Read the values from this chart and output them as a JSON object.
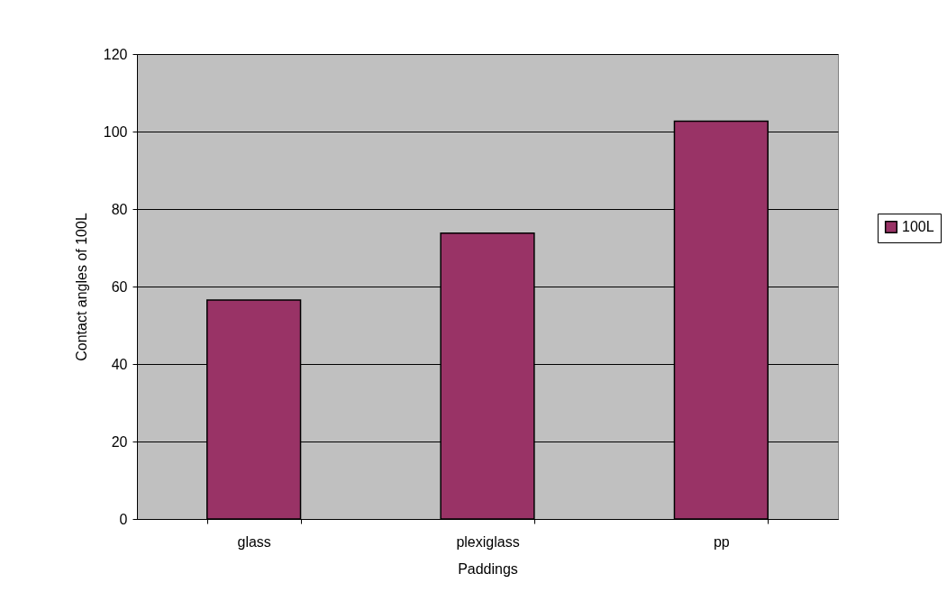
{
  "chart_data": {
    "type": "bar",
    "xlabel": "Paddings",
    "ylabel": "Contact angles of 100L",
    "categories": [
      "glass",
      "plexiglass",
      "pp"
    ],
    "series": [
      {
        "name": "100L",
        "color": "#993366",
        "values": [
          56.5,
          73.8,
          102.7
        ]
      }
    ],
    "ylim": [
      0,
      120
    ],
    "yticks": [
      0,
      20,
      40,
      60,
      80,
      100,
      120
    ],
    "grid": "y",
    "legend": "right"
  }
}
